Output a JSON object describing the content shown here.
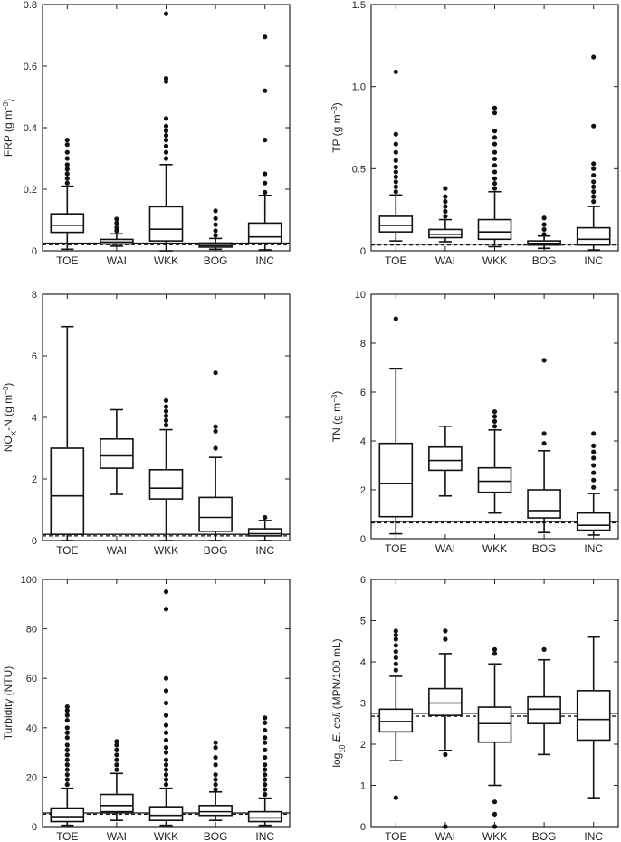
{
  "chart_data": [
    {
      "type": "box",
      "ylabel": "FRP (g m⁻³)",
      "ylabel_parts": [
        {
          "t": "FRP (g m"
        },
        {
          "t": "−3",
          "sup": true
        },
        {
          "t": ")"
        }
      ],
      "ylim": [
        0,
        0.8
      ],
      "yticks": [
        0,
        0.2,
        0.4,
        0.6,
        0.8
      ],
      "ytick_labels": [
        "0",
        "0.2",
        "0.4",
        "0.6",
        "0.8"
      ],
      "categories": [
        "TOE",
        "WAI",
        "WKK",
        "BOG",
        "INC"
      ],
      "reference_lines": [
        0.025,
        0.02
      ],
      "boxes": [
        {
          "whisker_low": 0.005,
          "q1": 0.06,
          "median": 0.083,
          "q3": 0.12,
          "whisker_high": 0.21,
          "outliers": [
            0.22,
            0.235,
            0.25,
            0.265,
            0.28,
            0.3,
            0.32,
            0.345,
            0.36
          ]
        },
        {
          "whisker_low": 0.015,
          "q1": 0.022,
          "median": 0.028,
          "q3": 0.037,
          "whisker_high": 0.055,
          "outliers": [
            0.065,
            0.075,
            0.09,
            0.103
          ]
        },
        {
          "whisker_low": 0.0,
          "q1": 0.032,
          "median": 0.07,
          "q3": 0.143,
          "whisker_high": 0.28,
          "outliers": [
            0.3,
            0.32,
            0.34,
            0.36,
            0.375,
            0.39,
            0.405,
            0.43,
            0.55,
            0.56,
            0.77
          ]
        },
        {
          "whisker_low": 0.005,
          "q1": 0.012,
          "median": 0.017,
          "q3": 0.025,
          "whisker_high": 0.04,
          "outliers": [
            0.05,
            0.065,
            0.085,
            0.105,
            0.13
          ]
        },
        {
          "whisker_low": 0.003,
          "q1": 0.025,
          "median": 0.045,
          "q3": 0.09,
          "whisker_high": 0.18,
          "outliers": [
            0.19,
            0.22,
            0.25,
            0.36,
            0.52,
            0.695
          ]
        }
      ]
    },
    {
      "type": "box",
      "ylabel": "TP (g m⁻³)",
      "ylabel_parts": [
        {
          "t": "TP (g m"
        },
        {
          "t": "−3",
          "sup": true
        },
        {
          "t": ")"
        }
      ],
      "ylim": [
        0,
        1.5
      ],
      "yticks": [
        0,
        0.5,
        1.0,
        1.5
      ],
      "ytick_labels": [
        "0",
        "0.5",
        "1.0",
        "1.5"
      ],
      "categories": [
        "TOE",
        "WAI",
        "WKK",
        "BOG",
        "INC"
      ],
      "reference_lines": [
        0.04,
        0.035
      ],
      "boxes": [
        {
          "whisker_low": 0.06,
          "q1": 0.115,
          "median": 0.155,
          "q3": 0.21,
          "whisker_high": 0.34,
          "outliers": [
            0.36,
            0.39,
            0.42,
            0.45,
            0.48,
            0.51,
            0.55,
            0.6,
            0.65,
            0.71,
            1.09
          ]
        },
        {
          "whisker_low": 0.055,
          "q1": 0.08,
          "median": 0.1,
          "q3": 0.13,
          "whisker_high": 0.19,
          "outliers": [
            0.21,
            0.24,
            0.27,
            0.3,
            0.33,
            0.38
          ]
        },
        {
          "whisker_low": 0.025,
          "q1": 0.07,
          "median": 0.115,
          "q3": 0.19,
          "whisker_high": 0.36,
          "outliers": [
            0.38,
            0.41,
            0.44,
            0.48,
            0.52,
            0.56,
            0.6,
            0.65,
            0.69,
            0.73,
            0.84,
            0.87
          ]
        },
        {
          "whisker_low": 0.015,
          "q1": 0.035,
          "median": 0.045,
          "q3": 0.06,
          "whisker_high": 0.09,
          "outliers": [
            0.1,
            0.13,
            0.16,
            0.2
          ]
        },
        {
          "whisker_low": 0.005,
          "q1": 0.035,
          "median": 0.07,
          "q3": 0.14,
          "whisker_high": 0.27,
          "outliers": [
            0.3,
            0.33,
            0.36,
            0.39,
            0.42,
            0.46,
            0.5,
            0.53,
            0.76,
            1.18
          ]
        }
      ]
    },
    {
      "type": "box",
      "ylabel": "NOₓ-N (g m⁻³)",
      "ylabel_parts": [
        {
          "t": "NO"
        },
        {
          "t": "X",
          "sub": true
        },
        {
          "t": "-N (g m"
        },
        {
          "t": "−3",
          "sup": true
        },
        {
          "t": ")"
        }
      ],
      "ylim": [
        0,
        8
      ],
      "yticks": [
        0,
        2,
        4,
        6,
        8
      ],
      "ytick_labels": [
        "0",
        "2",
        "4",
        "6",
        "8"
      ],
      "categories": [
        "TOE",
        "WAI",
        "WKK",
        "BOG",
        "INC"
      ],
      "reference_lines": [
        0.2,
        0.15
      ],
      "boxes": [
        {
          "whisker_low": 0.0,
          "q1": 0.2,
          "median": 1.45,
          "q3": 3.0,
          "whisker_high": 6.95,
          "outliers": []
        },
        {
          "whisker_low": 1.5,
          "q1": 2.35,
          "median": 2.75,
          "q3": 3.3,
          "whisker_high": 4.25,
          "outliers": []
        },
        {
          "whisker_low": 0.0,
          "q1": 1.35,
          "median": 1.7,
          "q3": 2.3,
          "whisker_high": 3.6,
          "outliers": [
            3.75,
            3.9,
            4.05,
            4.2,
            4.35,
            4.55
          ]
        },
        {
          "whisker_low": 0.0,
          "q1": 0.3,
          "median": 0.75,
          "q3": 1.4,
          "whisker_high": 2.7,
          "outliers": [
            3.0,
            3.55,
            3.7,
            5.45
          ]
        },
        {
          "whisker_low": 0.0,
          "q1": 0.15,
          "median": 0.22,
          "q3": 0.38,
          "whisker_high": 0.65,
          "outliers": [
            0.75
          ]
        }
      ]
    },
    {
      "type": "box",
      "ylabel": "TN (g m⁻³)",
      "ylabel_parts": [
        {
          "t": "TN (g m"
        },
        {
          "t": "−3",
          "sup": true
        },
        {
          "t": ")"
        }
      ],
      "ylim": [
        0,
        10
      ],
      "yticks": [
        0,
        2,
        4,
        6,
        8,
        10
      ],
      "ytick_labels": [
        "0",
        "2",
        "4",
        "6",
        "8",
        "10"
      ],
      "categories": [
        "TOE",
        "WAI",
        "WKK",
        "BOG",
        "INC"
      ],
      "reference_lines": [
        0.7,
        0.65
      ],
      "boxes": [
        {
          "whisker_low": 0.2,
          "q1": 0.9,
          "median": 2.25,
          "q3": 3.9,
          "whisker_high": 6.95,
          "outliers": [
            9.0
          ]
        },
        {
          "whisker_low": 1.75,
          "q1": 2.8,
          "median": 3.2,
          "q3": 3.75,
          "whisker_high": 4.6,
          "outliers": []
        },
        {
          "whisker_low": 1.05,
          "q1": 1.9,
          "median": 2.35,
          "q3": 2.9,
          "whisker_high": 4.45,
          "outliers": [
            4.6,
            4.8,
            5.0,
            5.2
          ]
        },
        {
          "whisker_low": 0.25,
          "q1": 0.85,
          "median": 1.15,
          "q3": 2.0,
          "whisker_high": 3.6,
          "outliers": [
            3.9,
            4.3,
            7.3
          ]
        },
        {
          "whisker_low": 0.15,
          "q1": 0.35,
          "median": 0.55,
          "q3": 1.05,
          "whisker_high": 1.85,
          "outliers": [
            2.1,
            2.4,
            2.7,
            3.0,
            3.3,
            3.55,
            3.8,
            4.3
          ]
        }
      ]
    },
    {
      "type": "box",
      "ylabel": "Turbidity (NTU)",
      "ylabel_parts": [
        {
          "t": "Turbidity (NTU)"
        }
      ],
      "ylim": [
        0,
        100
      ],
      "yticks": [
        0,
        20,
        40,
        60,
        80,
        100
      ],
      "ytick_labels": [
        "0",
        "20",
        "40",
        "60",
        "80",
        "100"
      ],
      "categories": [
        "TOE",
        "WAI",
        "WKK",
        "BOG",
        "INC"
      ],
      "reference_lines": [
        5.5,
        5
      ],
      "boxes": [
        {
          "whisker_low": 0.5,
          "q1": 2.0,
          "median": 4.0,
          "q3": 7.5,
          "whisker_high": 15.5,
          "outliers": [
            17,
            19,
            21,
            23,
            25,
            27,
            29,
            31,
            33,
            36,
            38,
            40,
            43,
            45,
            47,
            48.5
          ]
        },
        {
          "whisker_low": 2.5,
          "q1": 6.0,
          "median": 8.5,
          "q3": 13.0,
          "whisker_high": 21.5,
          "outliers": [
            23,
            25,
            27,
            29,
            31,
            33,
            34.5
          ]
        },
        {
          "whisker_low": 0.5,
          "q1": 2.5,
          "median": 4.5,
          "q3": 8.0,
          "whisker_high": 15.5,
          "outliers": [
            17,
            19,
            21,
            23,
            25,
            27,
            30,
            32,
            35,
            38,
            41,
            45,
            50,
            55,
            60,
            88,
            95
          ]
        },
        {
          "whisker_low": 2.5,
          "q1": 4.5,
          "median": 6.0,
          "q3": 8.5,
          "whisker_high": 14.0,
          "outliers": [
            15,
            17,
            19,
            21,
            25,
            28,
            32,
            34
          ]
        },
        {
          "whisker_low": 0.5,
          "q1": 2.0,
          "median": 3.5,
          "q3": 6.0,
          "whisker_high": 11.5,
          "outliers": [
            13,
            15,
            17,
            19,
            21,
            23,
            25,
            28,
            31,
            34,
            36,
            39,
            42,
            44
          ]
        }
      ]
    },
    {
      "type": "box",
      "ylabel": "log₁₀ E. coli (MPN/100 mL)",
      "ylabel_parts": [
        {
          "t": "log"
        },
        {
          "t": "10",
          "sub": true
        },
        {
          "t": " "
        },
        {
          "t": "E. coli",
          "italic": true
        },
        {
          "t": " (MPN/100 mL)"
        }
      ],
      "ylim": [
        0,
        6
      ],
      "yticks": [
        0,
        1,
        2,
        3,
        4,
        5,
        6
      ],
      "ytick_labels": [
        "0",
        "1",
        "2",
        "3",
        "4",
        "5",
        "6"
      ],
      "categories": [
        "TOE",
        "WAI",
        "WKK",
        "BOG",
        "INC"
      ],
      "reference_lines": [
        2.75,
        2.68
      ],
      "boxes": [
        {
          "whisker_low": 1.6,
          "q1": 2.3,
          "median": 2.55,
          "q3": 2.85,
          "whisker_high": 3.65,
          "outliers": [
            0.7,
            3.8,
            3.95,
            4.1,
            4.25,
            4.4,
            4.55,
            4.65,
            4.75
          ]
        },
        {
          "whisker_low": 1.85,
          "q1": 2.7,
          "median": 3.0,
          "q3": 3.35,
          "whisker_high": 4.2,
          "outliers": [
            0.0,
            1.75,
            4.55,
            4.75
          ]
        },
        {
          "whisker_low": 1.0,
          "q1": 2.05,
          "median": 2.5,
          "q3": 2.9,
          "whisker_high": 3.95,
          "outliers": [
            0.0,
            0.3,
            0.6,
            4.2,
            4.3
          ]
        },
        {
          "whisker_low": 1.75,
          "q1": 2.5,
          "median": 2.85,
          "q3": 3.15,
          "whisker_high": 4.05,
          "outliers": [
            4.3
          ]
        },
        {
          "whisker_low": 0.7,
          "q1": 2.1,
          "median": 2.6,
          "q3": 3.3,
          "whisker_high": 4.6,
          "outliers": []
        }
      ]
    }
  ]
}
